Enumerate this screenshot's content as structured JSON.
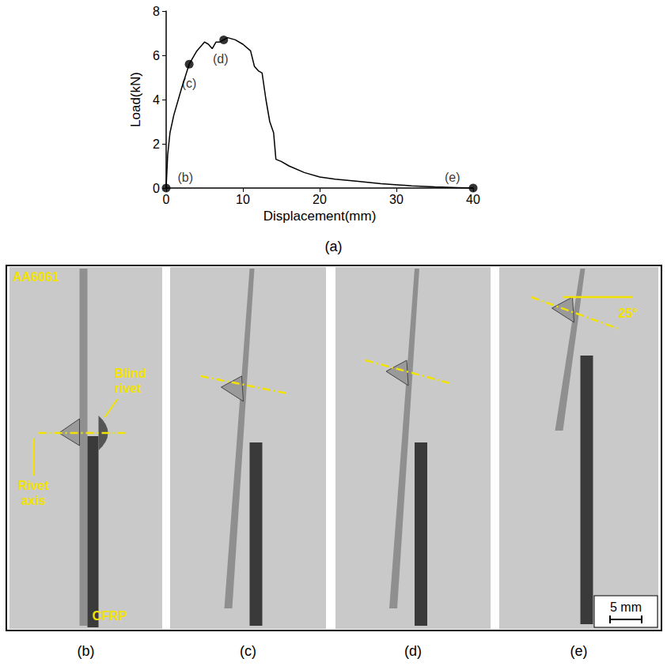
{
  "chart_data": {
    "type": "line",
    "caption": "(a)",
    "x_label": "Displacement(mm)",
    "y_label": "Load(kN)",
    "x": [
      0,
      0.2,
      0.5,
      1,
      2,
      3,
      4,
      5,
      5.5,
      6,
      6.5,
      7,
      7.5,
      8,
      9,
      10,
      11,
      11.5,
      12,
      12.5,
      13,
      13.5,
      14,
      14.3,
      15,
      16,
      18,
      20,
      22,
      25,
      28,
      32,
      35,
      38,
      40
    ],
    "values": [
      0,
      1.5,
      2.5,
      3.3,
      4.5,
      5.6,
      6.2,
      6.6,
      6.5,
      6.3,
      6.6,
      6.6,
      6.7,
      6.8,
      6.7,
      6.5,
      6.2,
      5.5,
      5.3,
      5.2,
      4.0,
      3.0,
      2.5,
      1.3,
      1.2,
      1.0,
      0.7,
      0.5,
      0.4,
      0.3,
      0.2,
      0.1,
      0.05,
      0.02,
      0
    ],
    "color": "#000000",
    "xlim": [
      0,
      40
    ],
    "xticks": [
      0,
      10,
      20,
      30,
      40
    ],
    "ylim": [
      0,
      8
    ],
    "yticks": [
      0,
      2,
      4,
      6,
      8
    ],
    "grid": false,
    "points": [
      {
        "x": 0,
        "y": 0,
        "label": "(b)"
      },
      {
        "x": 3,
        "y": 5.6,
        "label": "(c)"
      },
      {
        "x": 7.5,
        "y": 6.7,
        "label": "(d)"
      },
      {
        "x": 40,
        "y": 0,
        "label": "(e)"
      }
    ]
  },
  "photos": {
    "panels": [
      {
        "caption": "(b)",
        "texts": [
          "AA6061",
          "Blind rivet",
          "Rivet axis",
          "CFRP"
        ]
      },
      {
        "caption": "(c)"
      },
      {
        "caption": "(d)"
      },
      {
        "caption": "(e)",
        "texts": [
          "25°"
        ]
      }
    ],
    "scale_bar": "5 mm"
  }
}
